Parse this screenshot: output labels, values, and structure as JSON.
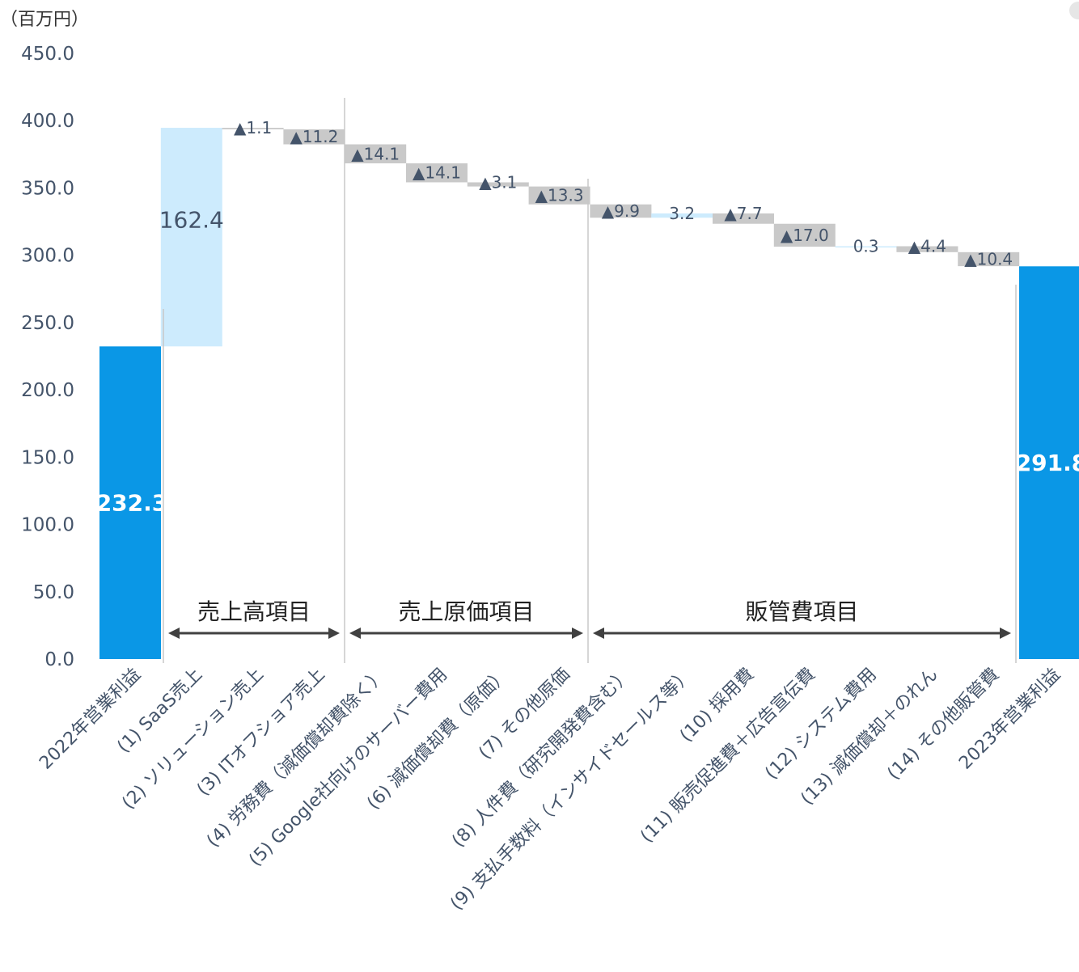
{
  "chart_data": {
    "type": "waterfall",
    "unit_label": "（百万円）",
    "ylim": [
      0,
      450
    ],
    "yticks": [
      0,
      50,
      100,
      150,
      200,
      250,
      300,
      350,
      400,
      450
    ],
    "ytick_labels": [
      "0.0",
      "50.0",
      "100.0",
      "150.0",
      "200.0",
      "250.0",
      "300.0",
      "350.0",
      "400.0",
      "450.0"
    ],
    "categories": [
      "2022年営業利益",
      "(1) SaaS売上",
      "(2) ソリューション売上",
      "(3) ITオフショア売上",
      "(4) 労務費（減価償却費除く）",
      "(5) Google社向けのサーバー費用",
      "(6) 減価償却費（原価）",
      "(7) その他原価",
      "(8) 人件費（研究開発費含む）",
      "(9) 支払手数料（インサイドセールス等）",
      "(10) 採用費",
      "(11) 販売促進費＋広告宣伝費",
      "(12) システム費用",
      "(13) 減価償却＋のれん",
      "(14) その他販管費",
      "2023年営業利益"
    ],
    "kinds": [
      "total",
      "inc",
      "dec",
      "dec",
      "dec",
      "dec",
      "dec",
      "dec",
      "dec",
      "inc",
      "dec",
      "dec",
      "inc",
      "dec",
      "dec",
      "total"
    ],
    "values": [
      232.3,
      162.4,
      -1.1,
      -11.2,
      -14.1,
      -14.1,
      -3.1,
      -13.3,
      -9.9,
      3.2,
      -7.7,
      -17.0,
      0.3,
      -4.4,
      -10.4,
      291.8
    ],
    "data_labels": [
      "232.3",
      "162.4",
      "▲1.1",
      "▲11.2",
      "▲14.1",
      "▲14.1",
      "▲3.1",
      "▲13.3",
      "▲9.9",
      "3.2",
      "▲7.7",
      "▲17.0",
      "0.3",
      "▲4.4",
      "▲10.4",
      "291.8"
    ],
    "groups": [
      {
        "label": "売上高項目",
        "from": 1,
        "to": 3
      },
      {
        "label": "売上原価項目",
        "from": 4,
        "to": 7
      },
      {
        "label": "販管費項目",
        "from": 8,
        "to": 14
      }
    ],
    "colors": {
      "total": "#0a97e6",
      "increase": "#cdebfd",
      "decrease": "#c9c9c9",
      "text": "#44546a",
      "divider": "#c8c8c8",
      "arrow": "#404040"
    }
  }
}
